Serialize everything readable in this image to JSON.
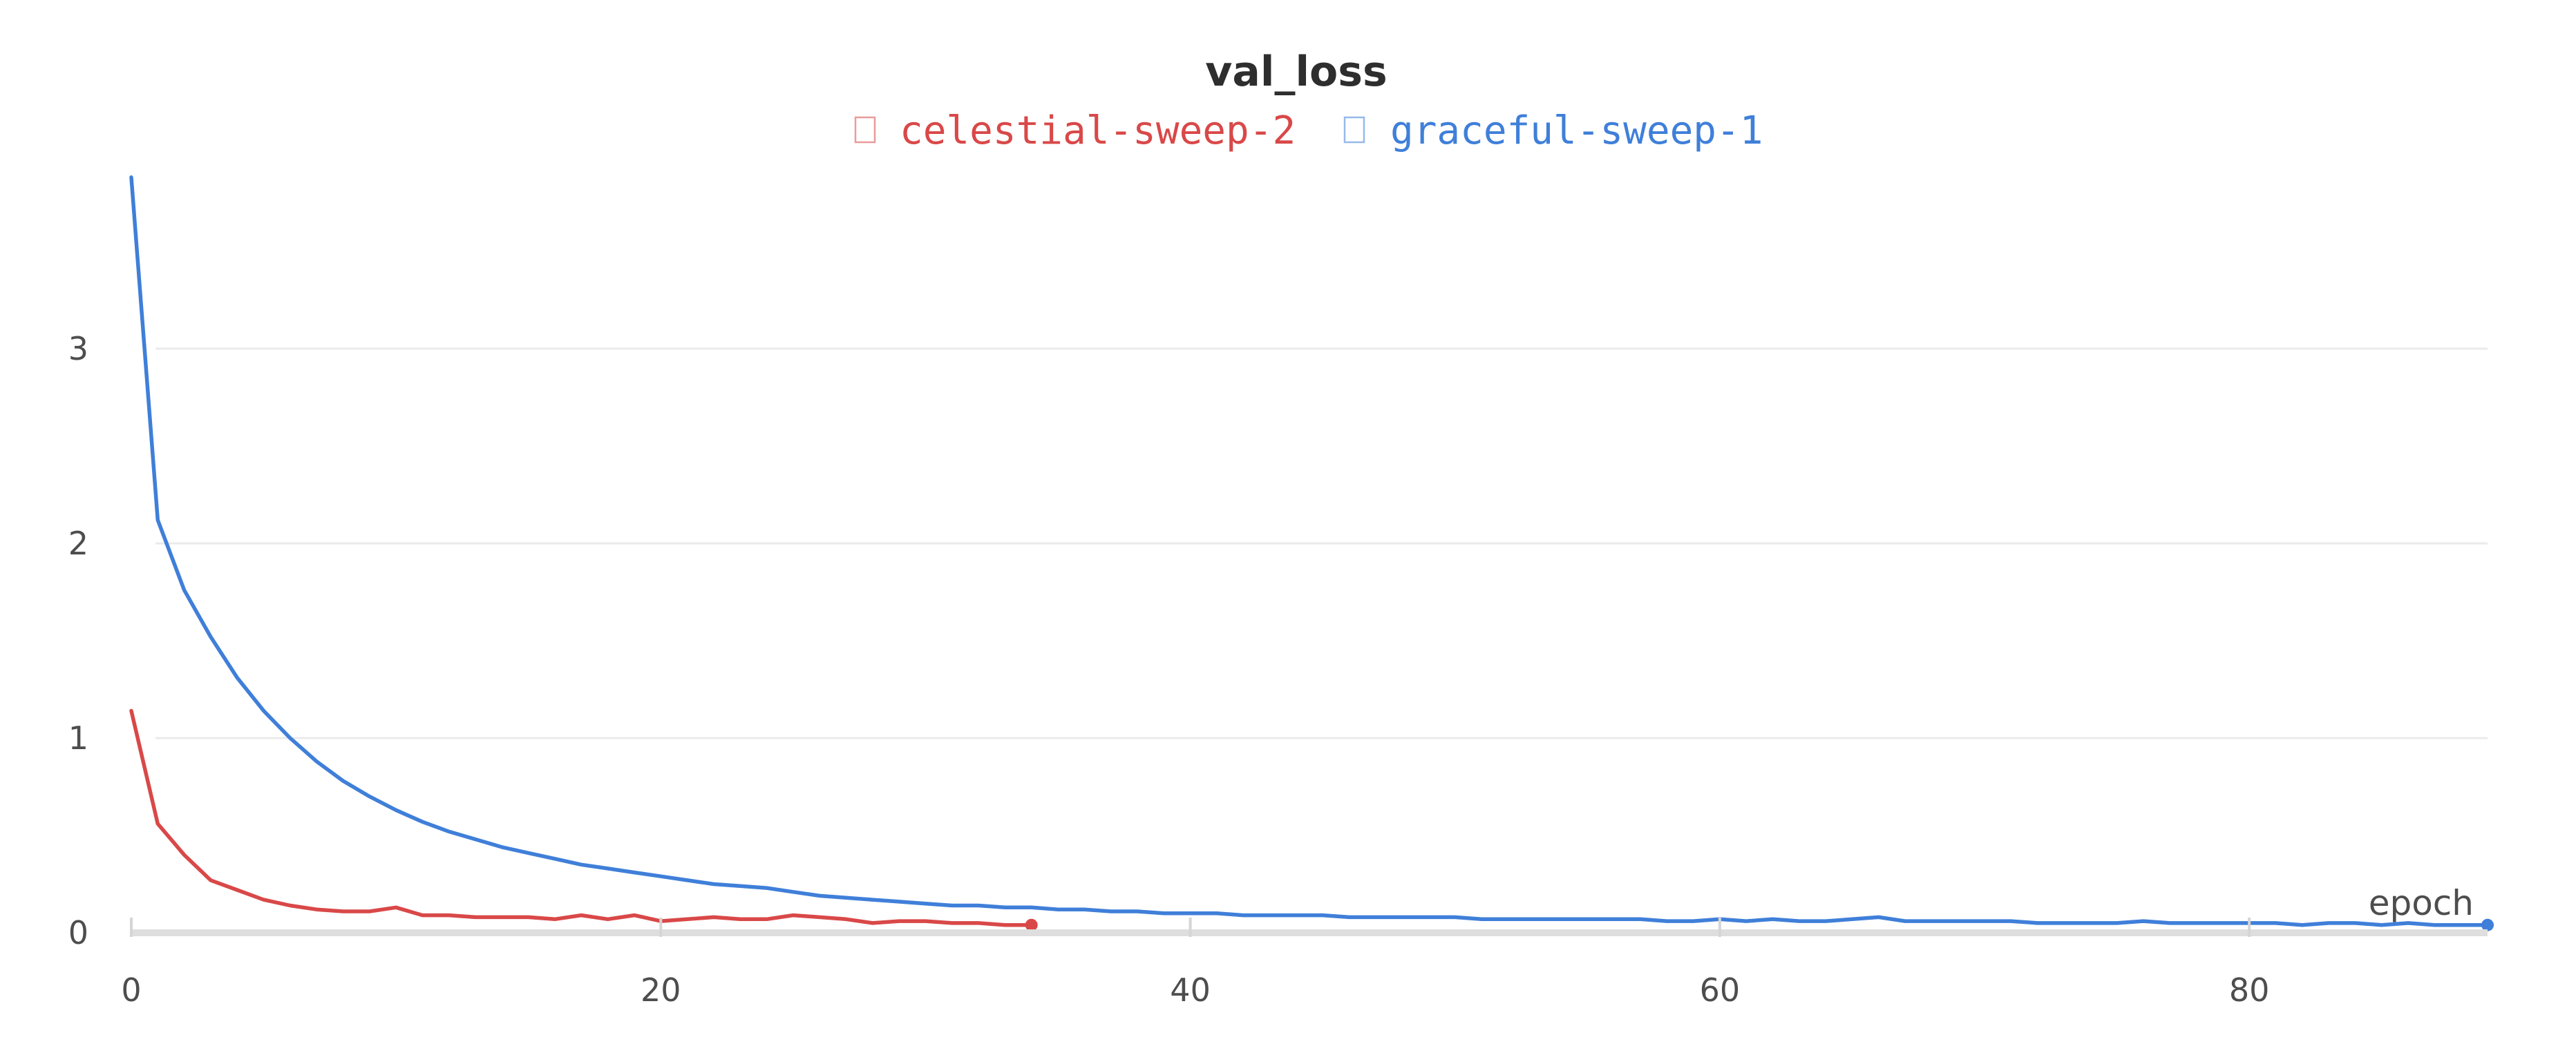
{
  "chart_data": {
    "type": "line",
    "title": "val_loss",
    "xlabel": "epoch",
    "ylabel": "",
    "xlim": [
      0,
      89
    ],
    "ylim": [
      0,
      3.9
    ],
    "xticks": [
      0,
      20,
      40,
      60,
      80
    ],
    "yticks": [
      0,
      1,
      2,
      3
    ],
    "grid": true,
    "legend_position": "top-center",
    "series": [
      {
        "name": "celestial-sweep-2",
        "color": "#d94848",
        "x": [
          0,
          1,
          2,
          3,
          4,
          5,
          6,
          7,
          8,
          9,
          10,
          11,
          12,
          13,
          14,
          15,
          16,
          17,
          18,
          19,
          20,
          21,
          22,
          23,
          24,
          25,
          26,
          27,
          28,
          29,
          30,
          31,
          32,
          33,
          34
        ],
        "values": [
          1.14,
          0.56,
          0.4,
          0.27,
          0.22,
          0.17,
          0.14,
          0.12,
          0.11,
          0.11,
          0.13,
          0.09,
          0.09,
          0.08,
          0.08,
          0.08,
          0.07,
          0.09,
          0.07,
          0.09,
          0.06,
          0.07,
          0.08,
          0.07,
          0.07,
          0.09,
          0.08,
          0.07,
          0.05,
          0.06,
          0.06,
          0.05,
          0.05,
          0.04,
          0.04
        ]
      },
      {
        "name": "graceful-sweep-1",
        "color": "#3f7fd9",
        "x": [
          0,
          1,
          2,
          3,
          4,
          5,
          6,
          7,
          8,
          9,
          10,
          11,
          12,
          13,
          14,
          15,
          16,
          17,
          18,
          19,
          20,
          21,
          22,
          23,
          24,
          25,
          26,
          27,
          28,
          29,
          30,
          31,
          32,
          33,
          34,
          35,
          36,
          37,
          38,
          39,
          40,
          41,
          42,
          43,
          44,
          45,
          46,
          47,
          48,
          49,
          50,
          51,
          52,
          53,
          54,
          55,
          56,
          57,
          58,
          59,
          60,
          61,
          62,
          63,
          64,
          65,
          66,
          67,
          68,
          69,
          70,
          71,
          72,
          73,
          74,
          75,
          76,
          77,
          78,
          79,
          80,
          81,
          82,
          83,
          84,
          85,
          86,
          87,
          88,
          89
        ],
        "values": [
          3.88,
          2.12,
          1.76,
          1.52,
          1.31,
          1.14,
          1.0,
          0.88,
          0.78,
          0.7,
          0.63,
          0.57,
          0.52,
          0.48,
          0.44,
          0.41,
          0.38,
          0.35,
          0.33,
          0.31,
          0.29,
          0.27,
          0.25,
          0.24,
          0.23,
          0.21,
          0.19,
          0.18,
          0.17,
          0.16,
          0.15,
          0.14,
          0.14,
          0.13,
          0.13,
          0.12,
          0.12,
          0.11,
          0.11,
          0.1,
          0.1,
          0.1,
          0.09,
          0.09,
          0.09,
          0.09,
          0.08,
          0.08,
          0.08,
          0.08,
          0.08,
          0.07,
          0.07,
          0.07,
          0.07,
          0.07,
          0.07,
          0.07,
          0.06,
          0.06,
          0.07,
          0.06,
          0.07,
          0.06,
          0.06,
          0.07,
          0.08,
          0.06,
          0.06,
          0.06,
          0.06,
          0.06,
          0.05,
          0.05,
          0.05,
          0.05,
          0.06,
          0.05,
          0.05,
          0.05,
          0.05,
          0.05,
          0.04,
          0.05,
          0.05,
          0.04,
          0.05,
          0.04,
          0.04,
          0.04
        ]
      }
    ]
  }
}
